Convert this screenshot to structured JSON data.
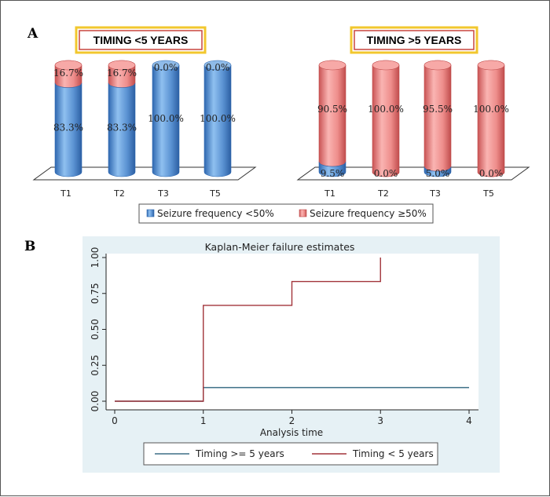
{
  "panel_a_letter": "A",
  "panel_b_letter": "B",
  "colors": {
    "blue": "#5b93d3",
    "red": "#ef8f8e",
    "km_blue": "#3d6f86",
    "km_red": "#a2343a",
    "km_bg": "#e6f1f5"
  },
  "chart_data": [
    {
      "type": "bar",
      "title": "TIMING <5 YEARS",
      "categories": [
        "T1",
        "T2",
        "T3",
        "T5"
      ],
      "series": [
        {
          "name": "Seizure frequency <50%",
          "values": [
            83.3,
            83.3,
            100.0,
            100.0
          ],
          "labels": [
            "83.3%",
            "83.3%",
            "100.0%",
            "100.0%"
          ]
        },
        {
          "name": "Seizure frequency ≥50%",
          "values": [
            16.7,
            16.7,
            0.0,
            0.0
          ],
          "labels": [
            "16.7%",
            "16.7%",
            "0.0%",
            "0.0%"
          ]
        }
      ],
      "stacked": true
    },
    {
      "type": "bar",
      "title": "TIMING >5 YEARS",
      "categories": [
        "T1",
        "T2",
        "T3",
        "T5"
      ],
      "series": [
        {
          "name": "Seizure frequency <50%",
          "values": [
            9.5,
            0.0,
            5.0,
            0.0
          ],
          "labels": [
            "9.5%",
            "0.0%",
            "5.0%",
            "0.0%"
          ]
        },
        {
          "name": "Seizure frequency ≥50%",
          "values": [
            90.5,
            100.0,
            95.5,
            100.0
          ],
          "labels": [
            "90.5%",
            "100.0%",
            "95.5%",
            "100.0%"
          ]
        }
      ],
      "stacked": true
    },
    {
      "type": "line",
      "title": "Kaplan-Meier failure estimates",
      "xlabel": "Analysis time",
      "ylabel": "",
      "xlim": [
        0,
        4
      ],
      "ylim": [
        0,
        1
      ],
      "xticks": [
        "0",
        "1",
        "2",
        "3",
        "4"
      ],
      "yticks": [
        "0.00",
        "0.25",
        "0.50",
        "0.75",
        "1.00"
      ],
      "step": true,
      "series": [
        {
          "name": "Timing >= 5 years",
          "x": [
            0,
            1,
            4
          ],
          "y": [
            0.0,
            0.095,
            0.095
          ]
        },
        {
          "name": "Timing < 5 years",
          "x": [
            0,
            1,
            2,
            3
          ],
          "y": [
            0.0,
            0.667,
            0.833,
            1.0
          ]
        }
      ],
      "legend": "bottom"
    }
  ]
}
